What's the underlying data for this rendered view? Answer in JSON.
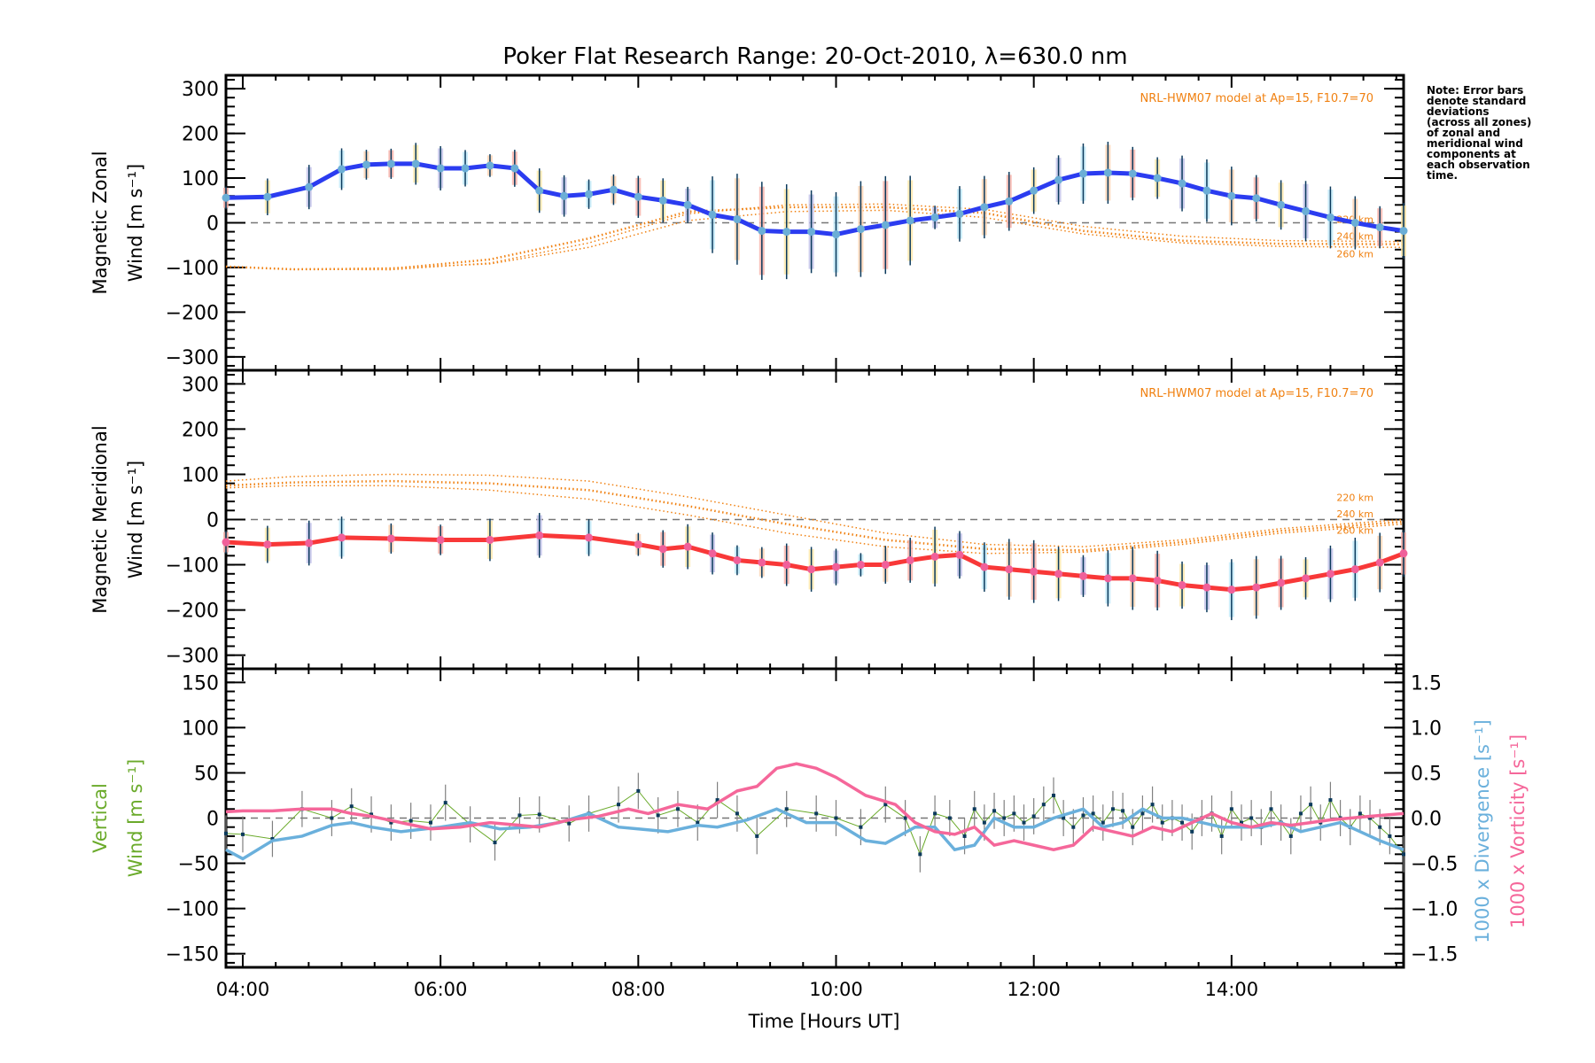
{
  "chart_data": [
    {
      "type": "line",
      "title": "Poker Flat Research Range: 20-Oct-2010, λ=630.0 nm",
      "panel": "zonal",
      "ylabel_lines": [
        "Magnetic Zonal",
        "Wind [m s⁻¹]"
      ],
      "ylim": [
        -330,
        330
      ],
      "yticks": [
        300,
        200,
        100,
        0,
        -100,
        -200,
        -300
      ],
      "model_label": "NRL-HWM07 model at Ap=15, F10.7=70",
      "model_altitude_labels": [
        "220 km",
        "240 km",
        "260 km"
      ],
      "colors": {
        "main": "#2b3cf0",
        "markers": "#6baed6",
        "errorbar": "#0b3a5c",
        "model": "#f08010"
      },
      "x": [
        3.83,
        4.25,
        4.67,
        5.0,
        5.25,
        5.5,
        5.75,
        6.0,
        6.25,
        6.5,
        6.75,
        7.0,
        7.25,
        7.5,
        7.75,
        8.0,
        8.25,
        8.5,
        8.75,
        9.0,
        9.25,
        9.5,
        9.75,
        10.0,
        10.25,
        10.5,
        10.75,
        11.0,
        11.25,
        11.5,
        11.75,
        12.0,
        12.25,
        12.5,
        12.75,
        13.0,
        13.25,
        13.5,
        13.75,
        14.0,
        14.25,
        14.5,
        14.75,
        15.0,
        15.25,
        15.5,
        15.74
      ],
      "values": [
        56,
        58,
        80,
        120,
        130,
        132,
        132,
        122,
        122,
        128,
        122,
        72,
        60,
        64,
        74,
        58,
        50,
        40,
        18,
        8,
        -18,
        -20,
        -20,
        -26,
        -14,
        -5,
        5,
        12,
        20,
        35,
        48,
        72,
        96,
        110,
        112,
        110,
        100,
        88,
        72,
        60,
        55,
        40,
        26,
        12,
        0,
        -10,
        -18
      ],
      "model_series": [
        {
          "name": "220 km",
          "x": [
            3.83,
            4.5,
            5.5,
            6.5,
            7.5,
            8.5,
            9.5,
            10.5,
            11.5,
            12.5,
            13.5,
            14.5,
            15.74
          ],
          "values": [
            -98,
            -104,
            -105,
            -90,
            -45,
            20,
            40,
            42,
            30,
            -8,
            -30,
            -40,
            -42
          ]
        },
        {
          "name": "240 km",
          "x": [
            3.83,
            4.5,
            5.5,
            6.5,
            7.5,
            8.5,
            9.5,
            10.5,
            11.5,
            12.5,
            13.5,
            14.5,
            15.74
          ],
          "values": [
            -98,
            -104,
            -103,
            -82,
            -35,
            25,
            35,
            35,
            22,
            -18,
            -40,
            -47,
            -48
          ]
        },
        {
          "name": "260 km",
          "x": [
            3.83,
            4.5,
            5.5,
            6.5,
            7.5,
            8.5,
            9.5,
            10.5,
            11.5,
            12.5,
            13.5,
            14.5,
            15.74
          ],
          "values": [
            -98,
            -104,
            -101,
            -92,
            -55,
            5,
            25,
            28,
            12,
            -25,
            -45,
            -53,
            -55
          ]
        }
      ]
    },
    {
      "type": "line",
      "panel": "meridional",
      "ylabel_lines": [
        "Magnetic Meridional",
        "Wind [m s⁻¹]"
      ],
      "ylim": [
        -330,
        330
      ],
      "yticks": [
        300,
        200,
        100,
        0,
        -100,
        -200,
        -300
      ],
      "model_label": "NRL-HWM07 model at Ap=15, F10.7=70",
      "model_altitude_labels": [
        "220 km",
        "240 km",
        "260 km"
      ],
      "colors": {
        "main": "#f83838",
        "markers": "#f0609a",
        "errorbar": "#0b3a5c",
        "model": "#f08010"
      },
      "x": [
        3.83,
        4.25,
        4.67,
        5.0,
        5.5,
        6.0,
        6.5,
        7.0,
        7.5,
        8.0,
        8.25,
        8.5,
        8.75,
        9.0,
        9.25,
        9.5,
        9.75,
        10.0,
        10.25,
        10.5,
        10.75,
        11.0,
        11.25,
        11.5,
        11.75,
        12.0,
        12.25,
        12.5,
        12.75,
        13.0,
        13.25,
        13.5,
        13.75,
        14.0,
        14.25,
        14.5,
        14.75,
        15.0,
        15.25,
        15.5,
        15.74
      ],
      "values": [
        -50,
        -55,
        -52,
        -40,
        -42,
        -45,
        -45,
        -35,
        -40,
        -55,
        -65,
        -60,
        -75,
        -90,
        -95,
        -100,
        -110,
        -105,
        -100,
        -100,
        -90,
        -82,
        -78,
        -105,
        -110,
        -115,
        -120,
        -125,
        -130,
        -130,
        -135,
        -145,
        -150,
        -155,
        -150,
        -140,
        -130,
        -120,
        -110,
        -95,
        -75
      ],
      "model_series": [
        {
          "name": "220 km",
          "x": [
            3.83,
            4.5,
            5.5,
            6.5,
            7.5,
            8.5,
            9.5,
            10.5,
            11.5,
            12.5,
            13.5,
            14.5,
            15.74
          ],
          "values": [
            85,
            95,
            100,
            98,
            85,
            50,
            10,
            -30,
            -55,
            -60,
            -45,
            -20,
            0
          ]
        },
        {
          "name": "240 km",
          "x": [
            3.83,
            4.5,
            5.5,
            6.5,
            7.5,
            8.5,
            9.5,
            10.5,
            11.5,
            12.5,
            13.5,
            14.5,
            15.74
          ],
          "values": [
            75,
            82,
            85,
            80,
            65,
            30,
            -10,
            -45,
            -65,
            -68,
            -50,
            -25,
            -5
          ]
        },
        {
          "name": "260 km",
          "x": [
            3.83,
            4.5,
            5.5,
            6.5,
            7.5,
            8.5,
            9.5,
            10.5,
            11.5,
            12.5,
            13.5,
            14.5,
            15.74
          ],
          "values": [
            70,
            75,
            75,
            65,
            45,
            10,
            -30,
            -60,
            -75,
            -72,
            -55,
            -30,
            -10
          ]
        }
      ]
    },
    {
      "type": "line",
      "panel": "vertical",
      "ylabel_lines": [
        "Vertical",
        "Wind [m s⁻¹]"
      ],
      "ylim": [
        -165,
        165
      ],
      "yticks": [
        150,
        100,
        50,
        0,
        -50,
        -100,
        -150
      ],
      "y2label_lines": [
        "1000 x Divergence [s⁻¹]",
        "1000 x Vorticity [s⁻¹]"
      ],
      "y2lim": [
        -1.65,
        1.65
      ],
      "y2ticks": [
        "1.5",
        "1.0",
        "0.5",
        "0.0",
        "-0.5",
        "-1.0",
        "-1.5"
      ],
      "xlabel": "Time [Hours UT]",
      "xticks": [
        "04:00",
        "06:00",
        "08:00",
        "10:00",
        "12:00",
        "14:00"
      ],
      "xlim": [
        3.83,
        15.74
      ],
      "colors": {
        "vertical": "#6aaa2a",
        "divergence": "#6ab0dc",
        "vorticity": "#f5679a",
        "errorbar": "#808080"
      },
      "vertical_wind": {
        "x": [
          3.83,
          4.0,
          4.3,
          4.6,
          4.9,
          5.1,
          5.3,
          5.5,
          5.7,
          5.9,
          6.05,
          6.3,
          6.55,
          6.8,
          7.0,
          7.3,
          7.5,
          7.8,
          8.0,
          8.2,
          8.4,
          8.6,
          8.8,
          9.0,
          9.2,
          9.5,
          9.8,
          10.0,
          10.25,
          10.5,
          10.7,
          10.85,
          11.0,
          11.15,
          11.3,
          11.4,
          11.5,
          11.6,
          11.7,
          11.8,
          11.9,
          12.0,
          12.1,
          12.2,
          12.3,
          12.4,
          12.5,
          12.6,
          12.7,
          12.8,
          12.9,
          13.0,
          13.1,
          13.2,
          13.3,
          13.4,
          13.5,
          13.6,
          13.7,
          13.8,
          13.9,
          14.0,
          14.1,
          14.2,
          14.3,
          14.4,
          14.5,
          14.6,
          14.7,
          14.8,
          14.9,
          15.0,
          15.1,
          15.2,
          15.3,
          15.4,
          15.5,
          15.6,
          15.74
        ],
        "values": [
          -17,
          -18,
          -23,
          10,
          0,
          13,
          4,
          -5,
          -3,
          -5,
          17,
          -7,
          -27,
          3,
          4,
          -6,
          5,
          15,
          30,
          3,
          10,
          -5,
          20,
          5,
          -20,
          10,
          5,
          0,
          -10,
          15,
          0,
          -40,
          5,
          0,
          -20,
          10,
          -5,
          8,
          0,
          5,
          -5,
          2,
          15,
          25,
          0,
          -10,
          3,
          5,
          -5,
          10,
          8,
          -10,
          5,
          15,
          -5,
          0,
          -5,
          -15,
          0,
          5,
          -20,
          10,
          -5,
          0,
          -10,
          10,
          -5,
          -20,
          5,
          15,
          -5,
          20,
          0,
          -10,
          5,
          0,
          -10,
          -20,
          -40
        ]
      },
      "divergence": {
        "x": [
          3.83,
          4.0,
          4.3,
          4.6,
          4.9,
          5.1,
          5.3,
          5.6,
          6.0,
          6.3,
          6.6,
          6.9,
          7.2,
          7.5,
          7.8,
          8.0,
          8.3,
          8.6,
          8.8,
          9.1,
          9.4,
          9.7,
          10.0,
          10.3,
          10.5,
          10.8,
          11.0,
          11.2,
          11.4,
          11.6,
          11.8,
          12.0,
          12.2,
          12.5,
          12.7,
          12.9,
          13.1,
          13.3,
          13.5,
          13.7,
          13.9,
          14.1,
          14.3,
          14.5,
          14.7,
          14.9,
          15.1,
          15.3,
          15.5,
          15.74
        ],
        "y2": [
          -0.35,
          -0.45,
          -0.25,
          -0.2,
          -0.08,
          -0.05,
          -0.1,
          -0.15,
          -0.1,
          -0.05,
          -0.12,
          -0.1,
          -0.05,
          0.05,
          -0.1,
          -0.12,
          -0.15,
          -0.08,
          -0.1,
          -0.02,
          0.1,
          -0.05,
          -0.05,
          -0.25,
          -0.28,
          -0.1,
          -0.1,
          -0.35,
          -0.3,
          0.0,
          -0.1,
          -0.1,
          0.0,
          0.1,
          -0.1,
          -0.05,
          0.1,
          0.0,
          0.0,
          -0.05,
          -0.1,
          -0.1,
          -0.1,
          -0.05,
          -0.15,
          -0.1,
          -0.05,
          -0.15,
          -0.25,
          -0.35
        ]
      },
      "vorticity": {
        "x": [
          3.83,
          4.0,
          4.3,
          4.6,
          4.9,
          5.1,
          5.3,
          5.6,
          5.9,
          6.2,
          6.5,
          6.8,
          7.0,
          7.3,
          7.6,
          7.9,
          8.1,
          8.4,
          8.7,
          9.0,
          9.2,
          9.4,
          9.6,
          9.8,
          10.0,
          10.3,
          10.6,
          10.8,
          11.0,
          11.2,
          11.4,
          11.6,
          11.8,
          12.0,
          12.2,
          12.4,
          12.6,
          12.8,
          13.0,
          13.2,
          13.4,
          13.6,
          13.8,
          14.0,
          14.2,
          14.4,
          14.6,
          14.8,
          15.0,
          15.2,
          15.4,
          15.74
        ],
        "y2": [
          0.07,
          0.08,
          0.08,
          0.1,
          0.1,
          0.05,
          0.02,
          -0.05,
          -0.12,
          -0.1,
          -0.05,
          -0.08,
          -0.1,
          -0.02,
          0.02,
          0.1,
          0.05,
          0.15,
          0.1,
          0.3,
          0.35,
          0.55,
          0.6,
          0.55,
          0.45,
          0.25,
          0.15,
          -0.05,
          -0.15,
          -0.18,
          -0.1,
          -0.3,
          -0.25,
          -0.3,
          -0.35,
          -0.3,
          -0.1,
          -0.15,
          -0.2,
          -0.1,
          -0.15,
          -0.05,
          0.05,
          -0.05,
          -0.1,
          -0.05,
          -0.08,
          -0.05,
          -0.02,
          0.0,
          0.02,
          0.05
        ]
      }
    }
  ],
  "note": {
    "lines": [
      "Note: Error bars",
      "denote standard",
      "deviations",
      "(across all zones)",
      "of zonal and",
      "meridional wind",
      "components at",
      "each observation",
      "time."
    ]
  }
}
